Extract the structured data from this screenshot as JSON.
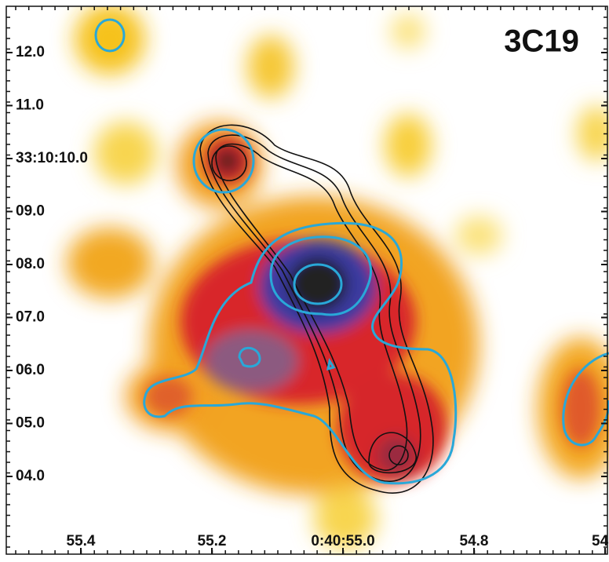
{
  "title": "3C19",
  "y_axis": {
    "labels": [
      "12.0",
      "11.0",
      "33:10:10.0",
      "09.0",
      "08.0",
      "07.0",
      "06.0",
      "05.0",
      "04.0"
    ]
  },
  "x_axis": {
    "labels": [
      "55.4",
      "55.2",
      "0:40:55.0",
      "54.8",
      "54"
    ]
  }
}
